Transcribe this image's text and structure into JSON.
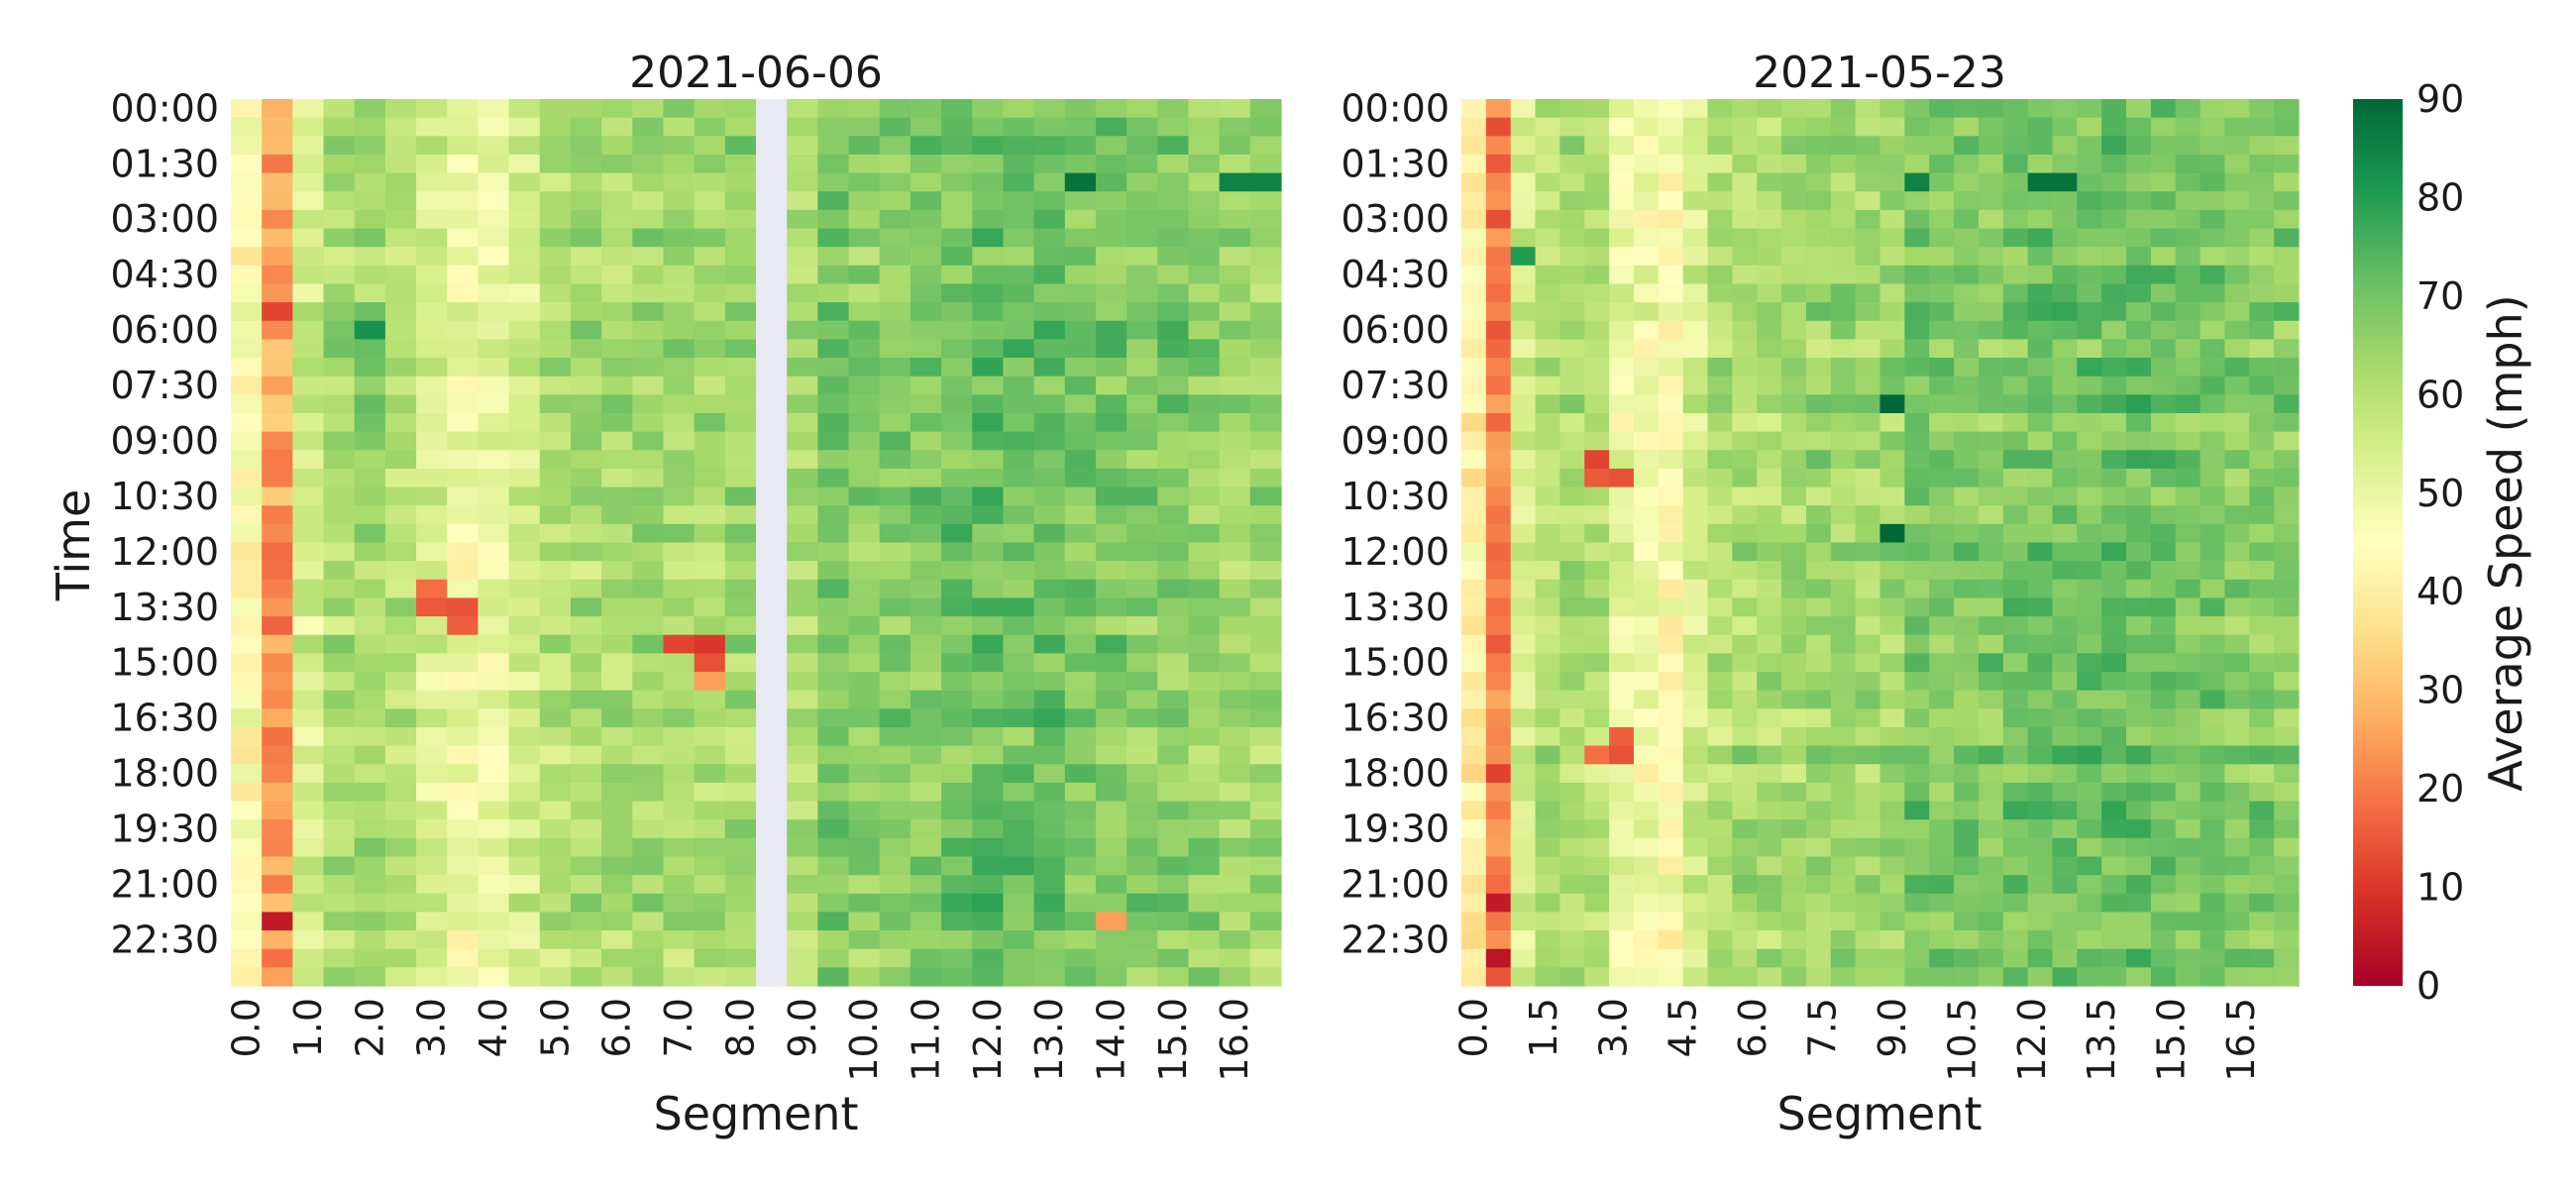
{
  "chart_data": [
    {
      "type": "heatmap",
      "title": "2021-06-06",
      "xlabel": "Segment",
      "ylabel": "Time",
      "seed": 606,
      "x_tick_labels": [
        "0.0",
        "1.0",
        "2.0",
        "3.0",
        "4.0",
        "5.0",
        "6.0",
        "7.0",
        "8.0",
        "9.0",
        "10.0",
        "11.0",
        "12.0",
        "13.0",
        "14.0",
        "15.0",
        "16.0"
      ],
      "y_tick_labels": [
        "00:00",
        "01:30",
        "03:00",
        "04:30",
        "06:00",
        "07:30",
        "09:00",
        "10:30",
        "12:00",
        "13:30",
        "15:00",
        "16:30",
        "18:00",
        "19:30",
        "21:00",
        "22:30"
      ],
      "n_cols": 34,
      "n_rows": 48,
      "column_base_mph": [
        45,
        25,
        55,
        62,
        64,
        60,
        54,
        48,
        50,
        55,
        60,
        62,
        62,
        63,
        63,
        63,
        64,
        64,
        62,
        70,
        66,
        68,
        68,
        70,
        71,
        70,
        70,
        69,
        69,
        67,
        68,
        66,
        64,
        64
      ],
      "missing_columns": [
        17
      ],
      "missing_rows": [],
      "hot_spots": [
        {
          "row": 26,
          "col": 6,
          "mph": 18
        },
        {
          "row": 27,
          "col": 6,
          "mph": 15
        },
        {
          "row": 27,
          "col": 7,
          "mph": 14
        },
        {
          "row": 28,
          "col": 7,
          "mph": 16
        },
        {
          "row": 29,
          "col": 14,
          "mph": 12
        },
        {
          "row": 29,
          "col": 15,
          "mph": 10
        },
        {
          "row": 30,
          "col": 15,
          "mph": 14
        },
        {
          "row": 31,
          "col": 15,
          "mph": 25
        },
        {
          "row": 44,
          "col": 1,
          "mph": 5
        },
        {
          "row": 44,
          "col": 28,
          "mph": 25
        },
        {
          "row": 11,
          "col": 1,
          "mph": 12
        },
        {
          "row": 4,
          "col": 27,
          "mph": 88
        },
        {
          "row": 4,
          "col": 32,
          "mph": 85
        },
        {
          "row": 4,
          "col": 33,
          "mph": 85
        },
        {
          "row": 12,
          "col": 4,
          "mph": 82
        }
      ]
    },
    {
      "type": "heatmap",
      "title": "2021-05-23",
      "xlabel": "Segment",
      "ylabel": "",
      "seed": 523,
      "x_tick_labels": [
        "0.0",
        "1.5",
        "3.0",
        "4.5",
        "6.0",
        "7.5",
        "9.0",
        "10.5",
        "12.0",
        "13.5",
        "15.0",
        "16.5"
      ],
      "y_tick_labels": [
        "00:00",
        "01:30",
        "03:00",
        "04:30",
        "06:00",
        "07:30",
        "09:00",
        "10:30",
        "12:00",
        "13:30",
        "15:00",
        "16:30",
        "18:00",
        "19:30",
        "21:00",
        "22:30"
      ],
      "n_cols": 34,
      "n_rows": 48,
      "column_base_mph": [
        40,
        20,
        55,
        60,
        62,
        60,
        50,
        48,
        45,
        55,
        60,
        62,
        62,
        63,
        64,
        64,
        63,
        64,
        70,
        68,
        68,
        68,
        69,
        70,
        70,
        70,
        71,
        71,
        70,
        69,
        69,
        68,
        68,
        67
      ],
      "missing_columns": [],
      "missing_rows": [],
      "hot_spots": [
        {
          "row": 19,
          "col": 5,
          "mph": 12
        },
        {
          "row": 20,
          "col": 5,
          "mph": 15
        },
        {
          "row": 20,
          "col": 6,
          "mph": 14
        },
        {
          "row": 34,
          "col": 6,
          "mph": 16
        },
        {
          "row": 35,
          "col": 6,
          "mph": 14
        },
        {
          "row": 35,
          "col": 5,
          "mph": 18
        },
        {
          "row": 43,
          "col": 1,
          "mph": 5
        },
        {
          "row": 46,
          "col": 1,
          "mph": 4
        },
        {
          "row": 8,
          "col": 2,
          "mph": 80
        },
        {
          "row": 4,
          "col": 18,
          "mph": 85
        },
        {
          "row": 4,
          "col": 23,
          "mph": 88
        },
        {
          "row": 4,
          "col": 24,
          "mph": 88
        },
        {
          "row": 16,
          "col": 17,
          "mph": 90
        },
        {
          "row": 23,
          "col": 17,
          "mph": 90
        }
      ]
    }
  ],
  "colorbar": {
    "label": "Average Speed (mph)",
    "min": 0,
    "max": 90,
    "ticks": [
      0,
      10,
      20,
      30,
      40,
      50,
      60,
      70,
      80,
      90
    ],
    "stops": [
      "#a50026",
      "#d73027",
      "#f46d43",
      "#fdae61",
      "#fee08b",
      "#ffffbf",
      "#d9ef8b",
      "#a6d96a",
      "#66bd63",
      "#1a9850",
      "#006837"
    ],
    "missing_color": "#e8e9f2"
  }
}
